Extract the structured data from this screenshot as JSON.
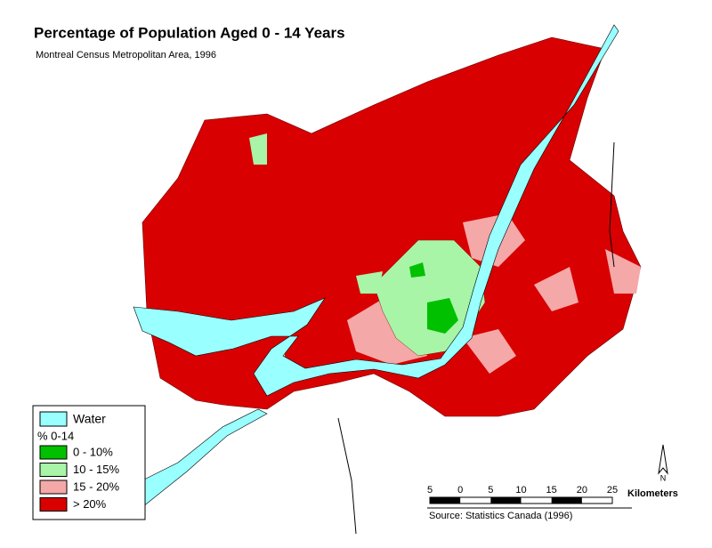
{
  "title": "Percentage of Population Aged 0 - 14 Years",
  "subtitle": "Montreal Census Metropolitan Area, 1996",
  "legend": {
    "water": {
      "label": "Water",
      "color": "#99ffff"
    },
    "heading": "% 0-14",
    "items": [
      {
        "label": "0 - 10%",
        "color": "#00c000"
      },
      {
        "label": "10 - 15%",
        "color": "#a8f5a8"
      },
      {
        "label": "15 - 20%",
        "color": "#f5a8a8"
      },
      {
        "label": "> 20%",
        "color": "#d80000"
      }
    ]
  },
  "scale": {
    "labels": [
      "5",
      "0",
      "5",
      "10",
      "15",
      "20",
      "25"
    ],
    "unit": "Kilometers"
  },
  "north": "N",
  "source": "Source: Statistics Canada (1996)"
}
